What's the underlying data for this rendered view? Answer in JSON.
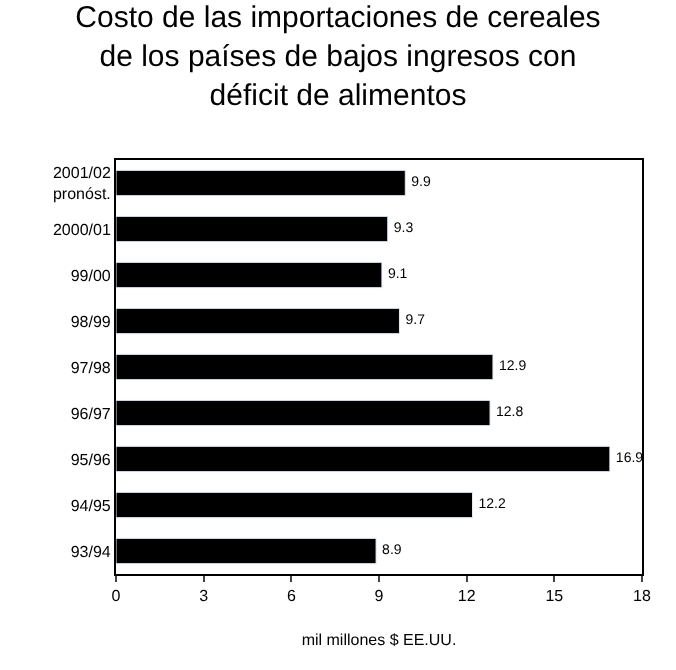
{
  "chart_data": {
    "type": "bar",
    "orientation": "horizontal",
    "title": "Costo de las importaciones de cereales\nde los países de bajos ingresos con\ndéficit de alimentos",
    "xlabel": "mil millones $ EE.UU.",
    "categories": [
      "2001/02\npronóst.",
      "2000/01",
      "99/00",
      "98/99",
      "97/98",
      "96/97",
      "95/96",
      "94/95",
      "93/94"
    ],
    "values": [
      9.9,
      9.3,
      9.1,
      9.7,
      12.9,
      12.8,
      16.9,
      12.2,
      8.9
    ],
    "color": "#000000",
    "xlim": [
      0,
      18
    ],
    "xticks": [
      0,
      3,
      6,
      9,
      12,
      15,
      18
    ],
    "data_labels": true
  }
}
